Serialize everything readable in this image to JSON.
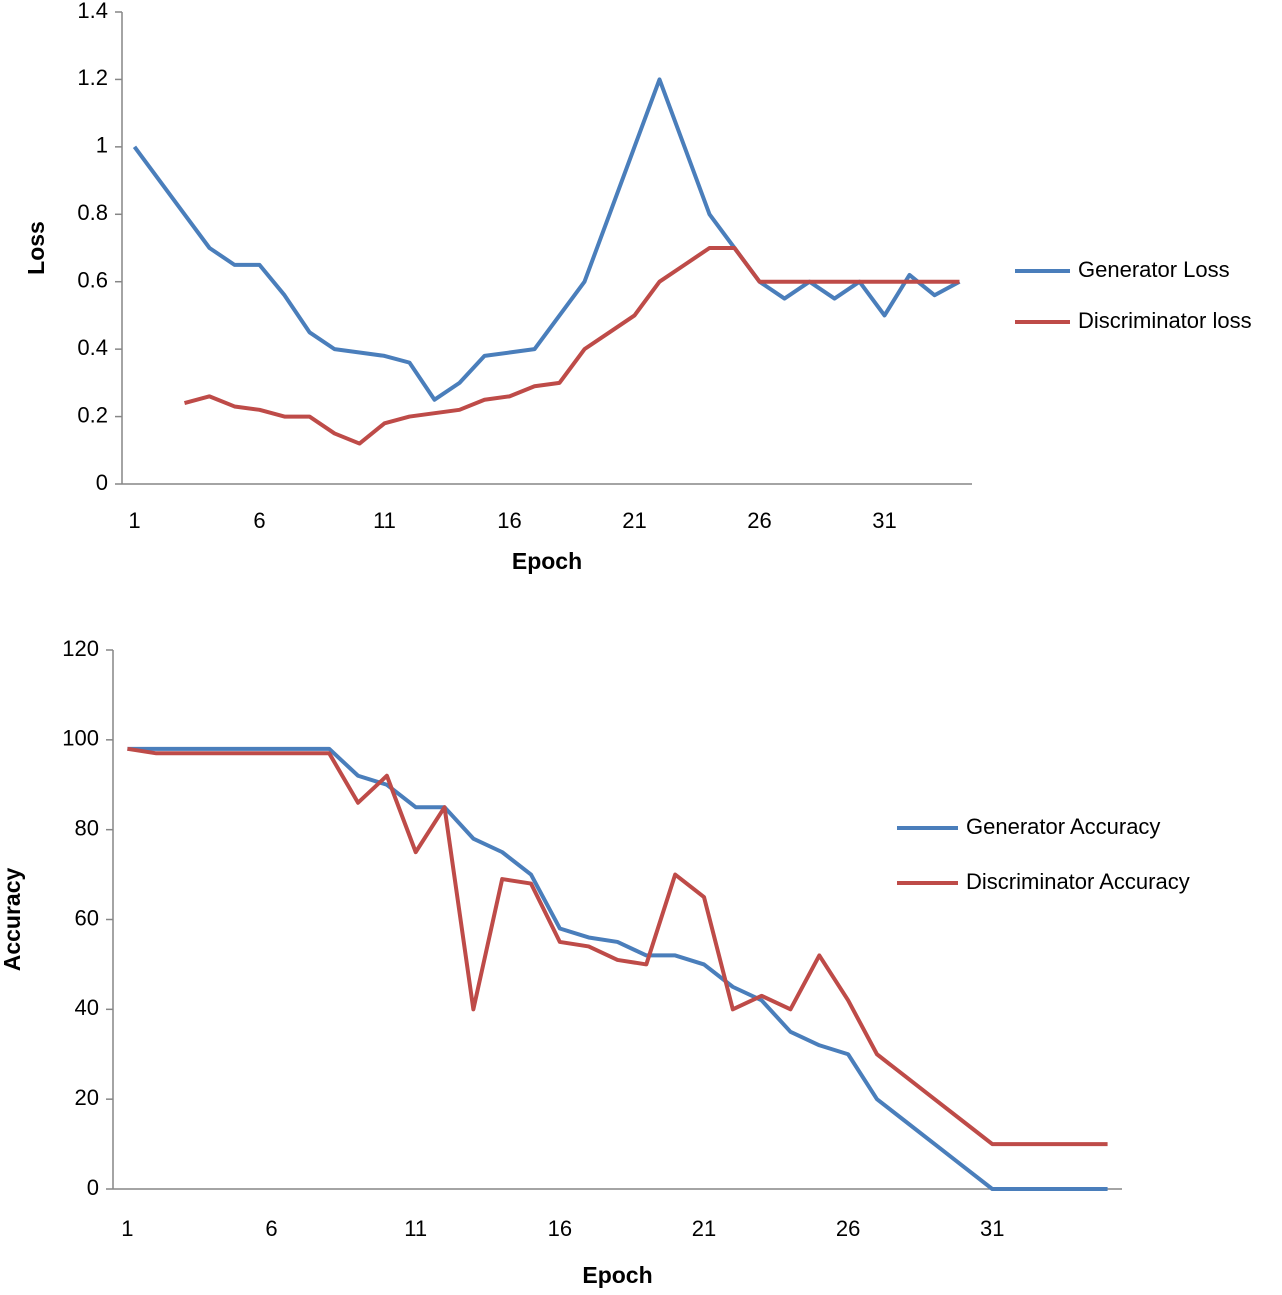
{
  "chart_data": [
    {
      "type": "line",
      "ylabel": "Loss",
      "xlabel": "Epoch",
      "categories": [
        "1",
        null,
        null,
        null,
        null,
        "6",
        null,
        null,
        null,
        null,
        "11",
        null,
        null,
        null,
        null,
        "16",
        null,
        null,
        null,
        null,
        "21",
        null,
        null,
        null,
        null,
        "26",
        null,
        null,
        null,
        null,
        "31",
        null,
        null,
        null
      ],
      "series": [
        {
          "name": "Generator Loss",
          "color": "#4a7ebb",
          "values": [
            1.0,
            0.9,
            0.8,
            0.7,
            0.65,
            0.65,
            0.56,
            0.45,
            0.4,
            0.39,
            0.38,
            0.36,
            0.25,
            0.3,
            0.38,
            0.39,
            0.4,
            0.5,
            0.6,
            0.8,
            1.0,
            1.2,
            1.0,
            0.8,
            0.7,
            0.6,
            0.55,
            0.6,
            0.55,
            0.6,
            0.5,
            0.62,
            0.56,
            0.6
          ]
        },
        {
          "name": "Discriminator loss",
          "color": "#be4b48",
          "values": [
            null,
            null,
            0.24,
            0.26,
            0.23,
            0.22,
            0.2,
            0.2,
            0.15,
            0.12,
            0.18,
            0.2,
            0.21,
            0.22,
            0.25,
            0.26,
            0.29,
            0.3,
            0.4,
            0.45,
            0.5,
            0.6,
            0.65,
            0.7,
            0.7,
            0.6,
            0.6,
            0.6,
            0.6,
            0.6,
            0.6,
            0.6,
            0.6,
            0.6
          ]
        }
      ],
      "ylim": [
        0,
        1.4
      ],
      "yticks": [
        0,
        0.2,
        0.4,
        0.6,
        0.8,
        1,
        1.2,
        1.4
      ],
      "grid": false,
      "legend": "right"
    },
    {
      "type": "line",
      "ylabel": "Accuracy",
      "xlabel": "Epoch",
      "categories": [
        "1",
        null,
        null,
        null,
        null,
        "6",
        null,
        null,
        null,
        null,
        "11",
        null,
        null,
        null,
        null,
        "16",
        null,
        null,
        null,
        null,
        "21",
        null,
        null,
        null,
        null,
        "26",
        null,
        null,
        null,
        null,
        "31",
        null,
        null,
        null,
        null
      ],
      "series": [
        {
          "name": "Generator Accuracy",
          "color": "#4a7ebb",
          "values": [
            98,
            98,
            98,
            98,
            98,
            98,
            98,
            98,
            92,
            90,
            85,
            85,
            78,
            75,
            70,
            58,
            56,
            55,
            52,
            52,
            50,
            45,
            42,
            35,
            32,
            30,
            20,
            15,
            10,
            5,
            0,
            0,
            0,
            0,
            0
          ]
        },
        {
          "name": "Discriminator Accuracy",
          "color": "#be4b48",
          "values": [
            98,
            97,
            97,
            97,
            97,
            97,
            97,
            97,
            86,
            92,
            75,
            85,
            40,
            69,
            68,
            55,
            54,
            51,
            50,
            70,
            65,
            40,
            43,
            40,
            52,
            42,
            30,
            25,
            20,
            15,
            10,
            10,
            10,
            10,
            10
          ]
        }
      ],
      "ylim": [
        0,
        120
      ],
      "yticks": [
        0,
        20,
        40,
        60,
        80,
        100,
        120
      ],
      "grid": false,
      "legend": "right"
    }
  ]
}
